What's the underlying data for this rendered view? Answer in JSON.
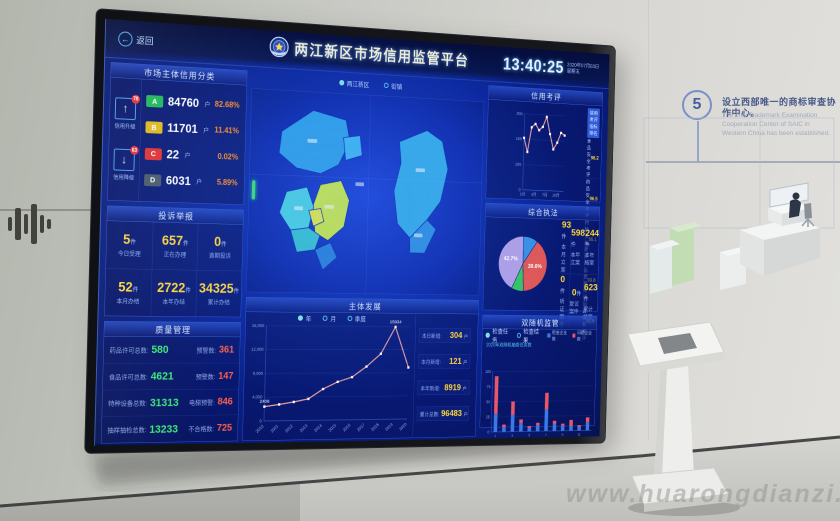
{
  "watermark": "www.huarongdianzi.com",
  "wall": {
    "step_number": "5",
    "cn_text": "设立西部唯一的商标审查协作中心。",
    "en_text": "The only Trademark Examination Cooperation Center of SAIC in Western China has been established."
  },
  "dashboard": {
    "back_label": "返回",
    "back_icon": "←",
    "title": "两江新区市场信用监管平台",
    "clock": {
      "time": "13:40:25",
      "date": "2020年07月03日",
      "weekday": "星期五"
    },
    "map": {
      "toggles": [
        {
          "label": "两江新区",
          "active": true
        },
        {
          "label": "街镇",
          "active": false
        }
      ]
    },
    "credit_class": {
      "title": "市场主体信用分类",
      "up": {
        "badge": "78",
        "label": "信用升级",
        "icon": "↑"
      },
      "down": {
        "badge": "63",
        "label": "信用降级",
        "icon": "↓"
      },
      "rows": [
        {
          "grade": "A",
          "color": "#1fb958",
          "count": "84760",
          "unit": "户",
          "pct": "82.68%"
        },
        {
          "grade": "B",
          "color": "#e0bb1d",
          "count": "11701",
          "unit": "户",
          "pct": "11.41%"
        },
        {
          "grade": "C",
          "color": "#e33030",
          "count": "22",
          "unit": "户",
          "pct": "0.02%"
        },
        {
          "grade": "D",
          "color": "#4a5a68",
          "count": "6031",
          "unit": "户",
          "pct": "5.89%"
        }
      ]
    },
    "complaints": {
      "title": "投诉举报",
      "cells": [
        {
          "value": "5",
          "unit": "件",
          "label": "今日受理"
        },
        {
          "value": "657",
          "unit": "件",
          "label": "正在办理"
        },
        {
          "value": "0",
          "unit": "件",
          "label": "逾期投诉"
        },
        {
          "value": "52",
          "unit": "件",
          "label": "本月办结"
        },
        {
          "value": "2722",
          "unit": "件",
          "label": "本年办结"
        },
        {
          "value": "34325",
          "unit": "件",
          "label": "累计办结"
        }
      ]
    },
    "quality": {
      "title": "质量管理",
      "rows": [
        {
          "label": "药品许可总数:",
          "value": "580",
          "label2": "预警数:",
          "value2": "361"
        },
        {
          "label": "食品许可总数:",
          "value": "4621",
          "label2": "预警数:",
          "value2": "147"
        },
        {
          "label": "特种设备总数:",
          "value": "31313",
          "label2": "电梯预警:",
          "value2": "846"
        },
        {
          "label": "抽样抽检总数:",
          "value": "13233",
          "label2": "不合格数:",
          "value2": "725"
        }
      ]
    },
    "entity_dev": {
      "title": "主体发展",
      "toggles": [
        {
          "label": "年",
          "active": true
        },
        {
          "label": "月",
          "active": false
        },
        {
          "label": "季度",
          "active": false
        }
      ],
      "stats": [
        {
          "label": "本日新增:",
          "value": "304",
          "unit": "户"
        },
        {
          "label": "本月新增:",
          "value": "121",
          "unit": "户"
        },
        {
          "label": "本年新增:",
          "value": "8919",
          "unit": "户"
        },
        {
          "label": "累计总数:",
          "value": "96483",
          "unit": "户"
        }
      ]
    },
    "credit_eval": {
      "title": "信用考评",
      "list_header": "信用考评指标排名",
      "list": [
        {
          "label": "食品安全考评",
          "value": "98.2"
        },
        {
          "label": "药品安全考评",
          "value": "96.5"
        },
        {
          "label": "特种设备考评",
          "value": "95.1"
        },
        {
          "label": "产品质量考评",
          "value": "93.8"
        },
        {
          "label": "消费维权考评",
          "value": "92.6"
        }
      ]
    },
    "enforcement": {
      "title": "综合执法",
      "cells": [
        {
          "value": "93",
          "unit": "件",
          "label": "本月立案"
        },
        {
          "value": "598",
          "unit": "件",
          "label": "本年立案"
        },
        {
          "value": "244",
          "unit": "件",
          "label": "本年结案"
        },
        {
          "value": "0",
          "unit": "件",
          "label": "听证案件"
        },
        {
          "value": "0",
          "unit": "件",
          "label": "复议案件"
        },
        {
          "value": "623",
          "unit": "件",
          "label": "累计结案"
        }
      ]
    },
    "random_check": {
      "title": "双随机监管",
      "toggles": [
        {
          "label": "检查任务",
          "active": true
        },
        {
          "label": "检查结果",
          "active": false
        }
      ],
      "legend": [
        {
          "label": "检查企业数",
          "color": "#3a7ae8"
        },
        {
          "label": "问题企业数",
          "color": "#e85868"
        }
      ],
      "note": "2020年双随机抽查任务数"
    }
  },
  "chart_data": [
    {
      "id": "entity-growth",
      "type": "line",
      "title": "主体发展",
      "x": [
        "2010",
        "2011",
        "2012",
        "2013",
        "2014",
        "2015",
        "2016",
        "2017",
        "2018",
        "2019",
        "2020"
      ],
      "values": [
        2408,
        2750,
        3150,
        3650,
        5300,
        6500,
        7300,
        9100,
        11300,
        15934,
        8919
      ],
      "ylim": [
        0,
        16000
      ],
      "yticks": [
        "0",
        "4,000",
        "8,000",
        "12,000",
        "16,000"
      ],
      "point_labels": {
        "0": "2408",
        "9": "15934"
      },
      "line_color": "#f0a0a0",
      "rotate_x": true,
      "xstep": 1
    },
    {
      "id": "credit-eval",
      "type": "line",
      "title": "信用考评",
      "x": [
        "1月",
        "2月",
        "3月",
        "4月",
        "5月",
        "6月",
        "7月",
        "8月",
        "9月",
        "10月",
        "11月",
        "12月"
      ],
      "values": [
        205,
        150,
        248,
        262,
        238,
        252,
        292,
        225,
        165,
        192,
        232,
        222
      ],
      "ylim": [
        0,
        300
      ],
      "yticks": [
        "0",
        "100",
        "200",
        "300"
      ],
      "line_color": "#f0a0a0",
      "xstep": 3
    },
    {
      "id": "enforcement-pie",
      "type": "pie",
      "title": "综合执法",
      "slices": [
        {
          "label": "",
          "value": 9.7,
          "color": "#3890e8"
        },
        {
          "label": "39.6%",
          "value": 39.6,
          "color": "#e05858"
        },
        {
          "label": "",
          "value": 8.0,
          "color": "#38c468"
        },
        {
          "label": "42.7%",
          "value": 42.7,
          "color": "#b0a0e8"
        }
      ]
    },
    {
      "id": "random-check",
      "type": "stacked-bar",
      "title": "双随机监管",
      "categories": [
        "1",
        "2",
        "3",
        "4",
        "5",
        "6",
        "7",
        "8",
        "9",
        "10",
        "11",
        "12"
      ],
      "ylim": [
        0,
        100
      ],
      "yticks": [
        "0",
        "25",
        "50",
        "75",
        "100"
      ],
      "series": [
        {
          "name": "检查企业数",
          "color": "#3a7ae8",
          "values": [
            30,
            8,
            28,
            14,
            6,
            10,
            36,
            12,
            9,
            8,
            6,
            14
          ]
        },
        {
          "name": "问题企业数",
          "color": "#e85868",
          "values": [
            62,
            4,
            22,
            6,
            3,
            4,
            28,
            5,
            3,
            10,
            3,
            8
          ]
        }
      ]
    }
  ]
}
